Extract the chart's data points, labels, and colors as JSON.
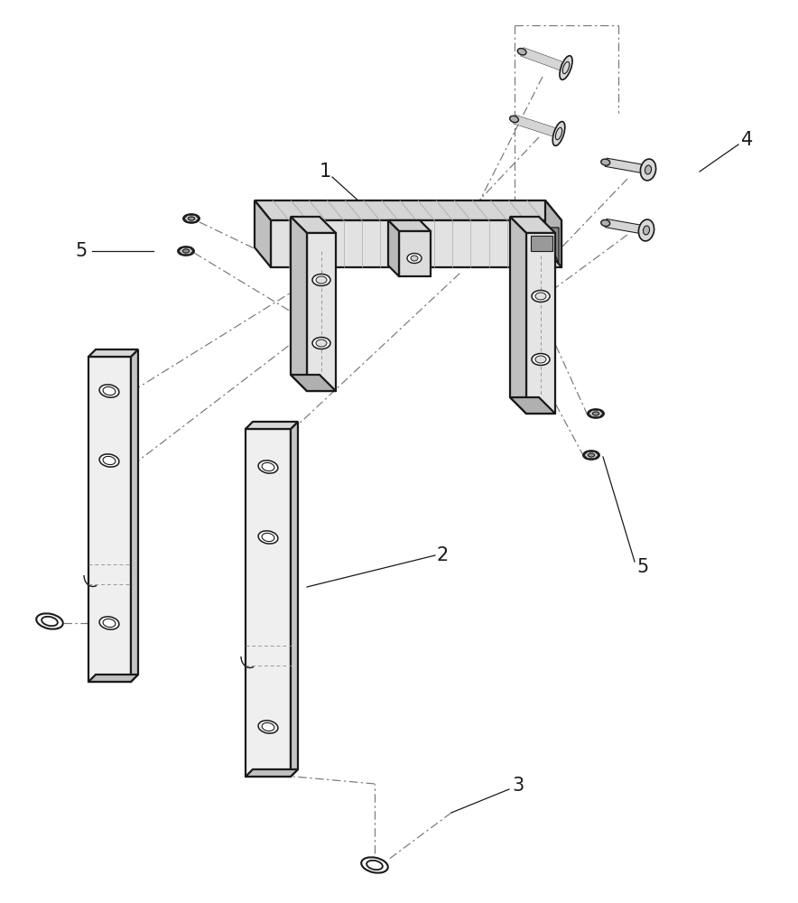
{
  "bg_color": "#ffffff",
  "lc": "#1a1a1a",
  "dc": "#777777",
  "figsize": [
    8.84,
    10.0
  ],
  "dpi": 100,
  "hatch_color": "#888888",
  "c_top": "#d8d8d8",
  "c_front": "#e8e8e8",
  "c_side": "#b8b8b8",
  "c_dark": "#999999",
  "c_light": "#f0f0f0"
}
